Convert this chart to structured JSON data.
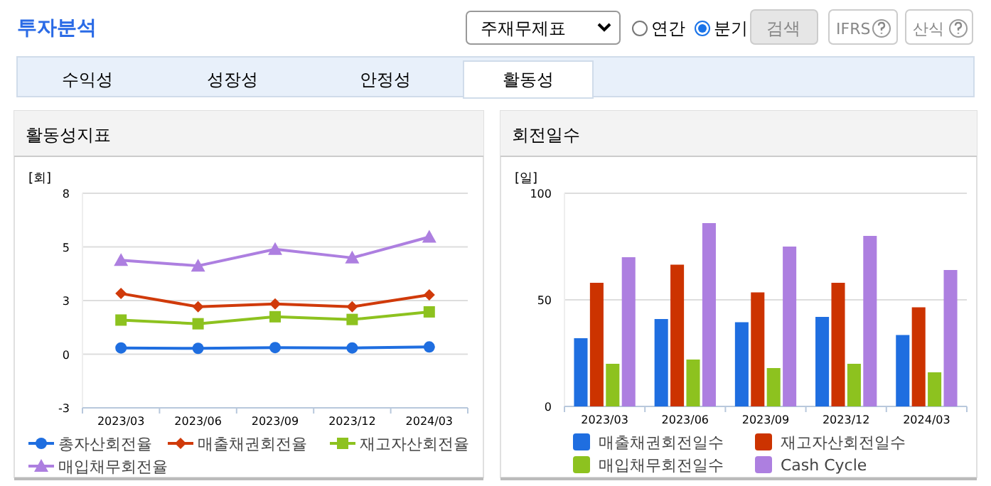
{
  "chart_data": [
    {
      "type": "other",
      "title": "투자분석",
      "annotations": [
        "주재무제표",
        "연간",
        "분기",
        "검색",
        "IFRS",
        "산식",
        "수익성",
        "성장성",
        "안정성",
        "활동성"
      ]
    },
    {
      "type": "line",
      "title": "활동성지표",
      "ylabel": "[회]",
      "categories": [
        "2023/03",
        "2023/06",
        "2023/09",
        "2023/12",
        "2024/03"
      ],
      "ylim": [
        -2.75,
        8.25
      ],
      "yticks": [
        {
          "value": -2.75,
          "label": "-3"
        },
        {
          "value": 0,
          "label": "0"
        },
        {
          "value": 2.75,
          "label": "3"
        },
        {
          "value": 5.5,
          "label": "5"
        },
        {
          "value": 8.25,
          "label": "8"
        }
      ],
      "grid": "y",
      "legend": "bottom",
      "series": [
        {
          "name": "총자산회전율",
          "color": "#1f6ee0",
          "marker": "circle",
          "values": [
            0.32,
            0.3,
            0.34,
            0.32,
            0.37
          ]
        },
        {
          "name": "매출채권회전율",
          "color": "#d03a0a",
          "marker": "diamond",
          "values": [
            3.11,
            2.43,
            2.58,
            2.43,
            3.04
          ]
        },
        {
          "name": "재고자산회전율",
          "color": "#8dc21f",
          "marker": "square",
          "values": [
            1.75,
            1.56,
            1.92,
            1.78,
            2.17
          ]
        },
        {
          "name": "매입채무회전율",
          "color": "#ad7fe0",
          "marker": "triangle",
          "values": [
            4.82,
            4.53,
            5.38,
            4.94,
            6.01
          ]
        }
      ]
    },
    {
      "type": "bar",
      "title": "회전일수",
      "ylabel": "[일]",
      "categories": [
        "2023/03",
        "2023/06",
        "2023/09",
        "2023/12",
        "2024/03"
      ],
      "ylim": [
        0,
        100
      ],
      "yticks": [
        0,
        50,
        100
      ],
      "grid": "y",
      "legend": "bottom",
      "series": [
        {
          "name": "매출채권회전일수",
          "color": "#1f6ee0",
          "values": [
            32,
            41,
            39.5,
            42,
            33.5
          ]
        },
        {
          "name": "재고자산회전일수",
          "color": "#cc3300",
          "values": [
            58,
            66.5,
            53.5,
            58,
            46.5
          ]
        },
        {
          "name": "매입채무회전일수",
          "color": "#8dc21f",
          "values": [
            20,
            22,
            18,
            20,
            16
          ]
        },
        {
          "name": "Cash Cycle",
          "color": "#ad7fe0",
          "values": [
            70,
            86,
            75,
            80,
            64
          ]
        }
      ]
    }
  ]
}
